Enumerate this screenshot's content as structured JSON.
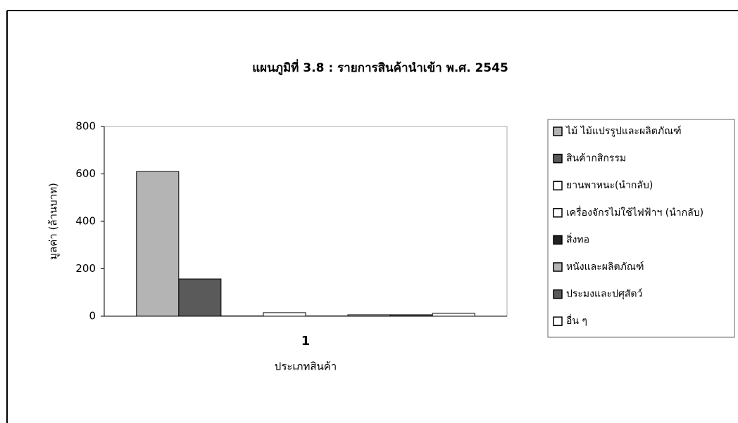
{
  "chart_data": {
    "type": "bar",
    "title": "แผนภูมิที่ 3.8 : รายการสินค้านำเข้า พ.ศ. 2545",
    "x_label": "ประเภทสินค้า",
    "y_label": "มูลค่า (ล้านบาท)",
    "categories": [
      "1"
    ],
    "series": [
      {
        "name": "ไม้  ไม้แปรรูปและผลิตภัณฑ์",
        "color": "#b4b4b4",
        "values": [
          610
        ]
      },
      {
        "name": "สินค้ากสิกรรม",
        "color": "#5a5a5a",
        "values": [
          157
        ]
      },
      {
        "name": "ยานพาหนะ(นำกลับ)",
        "color": "#ffffff",
        "values": [
          1
        ]
      },
      {
        "name": "เครื่องจักรไม่ใช้ไฟฟ้าฯ (นำกลับ)",
        "color": "#ffffff",
        "values": [
          15
        ]
      },
      {
        "name": "สิ่งทอ",
        "color": "#222222",
        "values": [
          1
        ]
      },
      {
        "name": "หนังและผลิตภัณฑ์",
        "color": "#b4b4b4",
        "values": [
          6
        ]
      },
      {
        "name": "ประมงและปศุสัตว์",
        "color": "#5a5a5a",
        "values": [
          6
        ]
      },
      {
        "name": "อื่น ๆ",
        "color": "#ffffff",
        "values": [
          12
        ]
      }
    ],
    "ylim": [
      0,
      800
    ],
    "yticks": [
      0,
      200,
      400,
      600,
      800
    ],
    "legend": "right"
  }
}
